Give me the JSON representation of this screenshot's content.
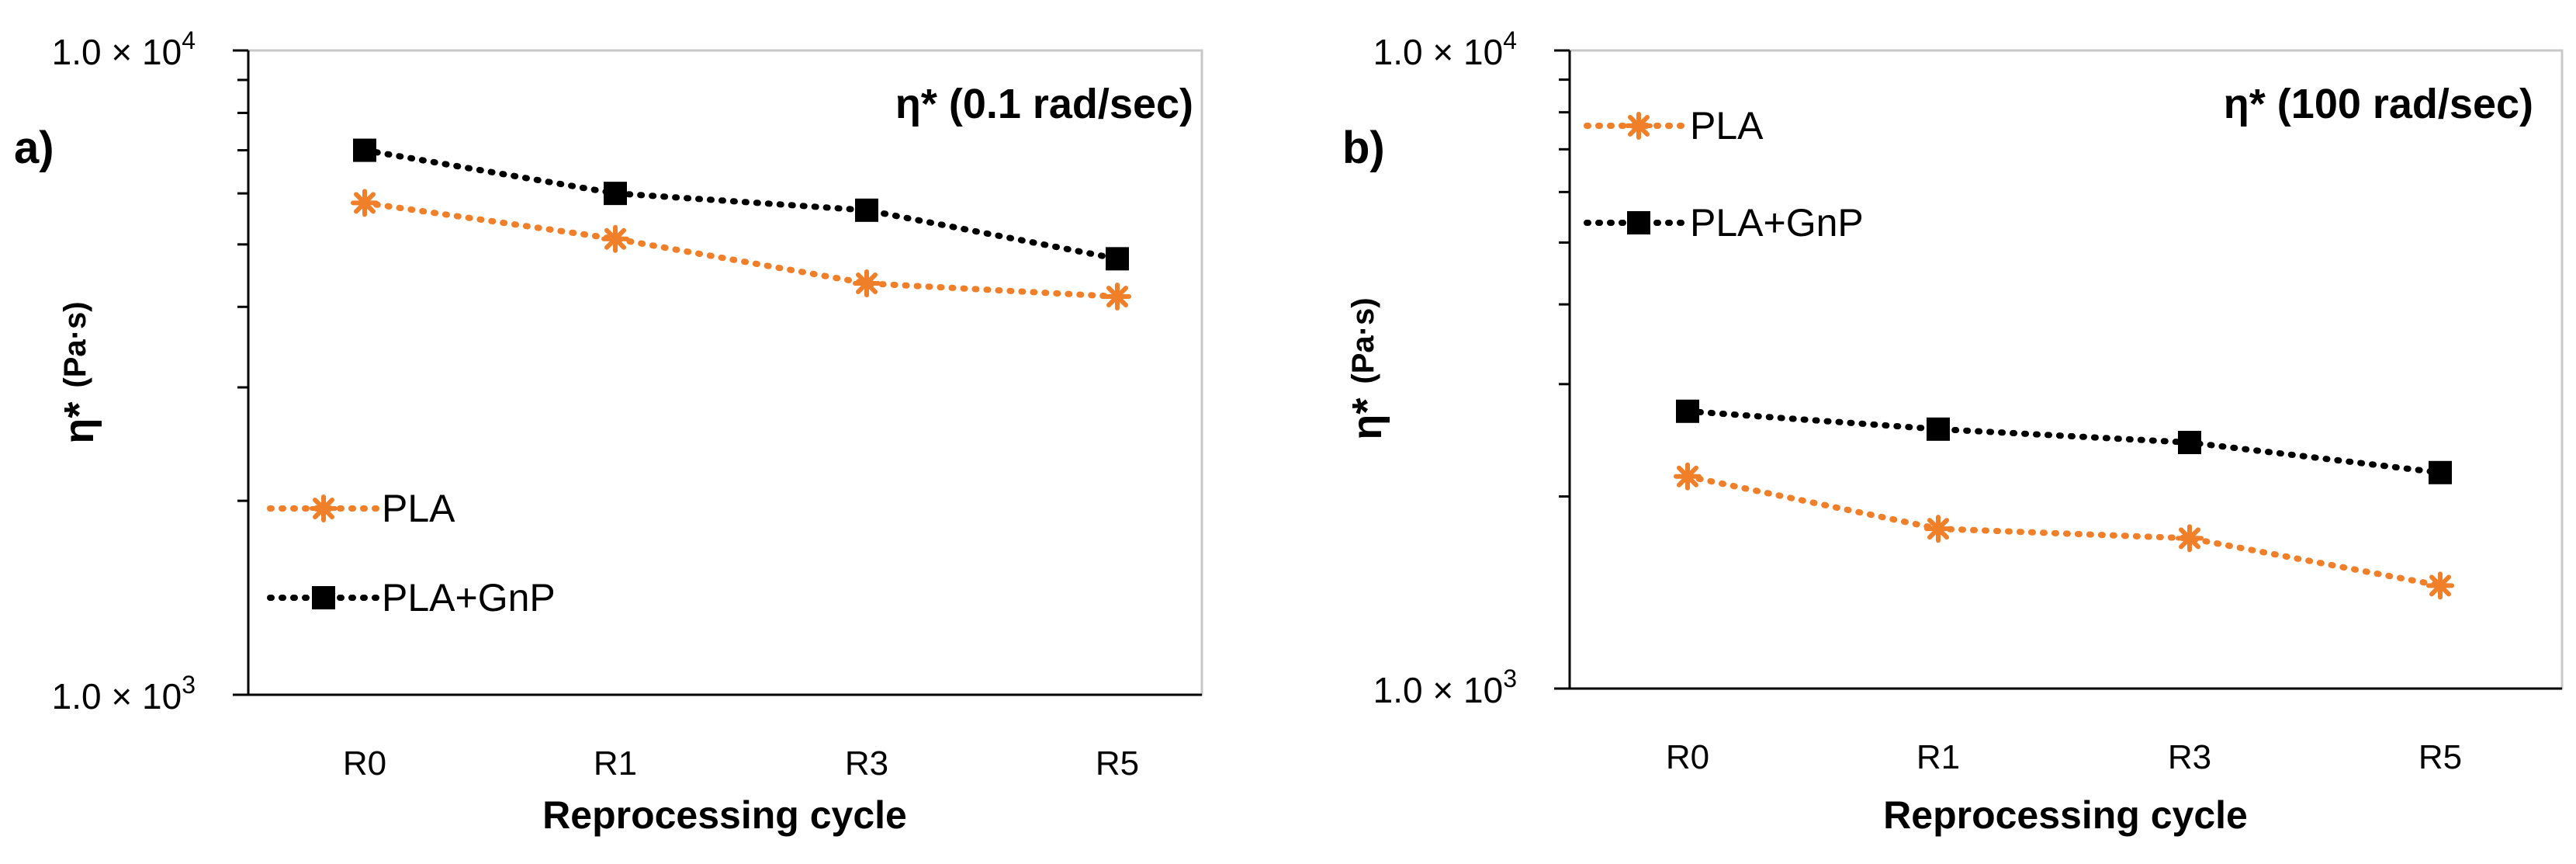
{
  "chart_data": [
    {
      "type": "line",
      "panel_label": "a)",
      "title": "η* (0.1 rad/sec)",
      "xlabel": "Reprocessing cycle",
      "ylabel": "η* (Pa·s)",
      "ylabel_main": "η*",
      "ylabel_unit": "(Pa·s)",
      "yscale": "log",
      "ylim": [
        1000,
        10000
      ],
      "ytick_labels": [
        {
          "mant": "1.0 × 10",
          "exp": "3",
          "value": 1000
        },
        {
          "mant": "1.0 × 10",
          "exp": "4",
          "value": 10000
        }
      ],
      "categories": [
        "R0",
        "R1",
        "R3",
        "R5"
      ],
      "legend_position": "lower-left",
      "series": [
        {
          "name": "PLA",
          "color": "#F07F2A",
          "marker": "asterisk",
          "values": [
            5800,
            5100,
            4350,
            4150
          ]
        },
        {
          "name": "PLA+GnP",
          "color": "#000000",
          "marker": "square",
          "values": [
            7000,
            6000,
            5650,
            4750
          ]
        }
      ]
    },
    {
      "type": "line",
      "panel_label": "b)",
      "title": "η* (100 rad/sec)",
      "xlabel": "Reprocessing cycle",
      "ylabel": "η* (Pa·s)",
      "ylabel_main": "η*",
      "ylabel_unit": "(Pa·s)",
      "yscale": "log",
      "ylim": [
        1000,
        10000
      ],
      "ytick_labels": [
        {
          "mant": "1.0 × 10",
          "exp": "3",
          "value": 1000
        },
        {
          "mant": "1.0 × 10",
          "exp": "4",
          "value": 10000
        }
      ],
      "categories": [
        "R0",
        "R1",
        "R3",
        "R5"
      ],
      "legend_position": "upper-left",
      "series": [
        {
          "name": "PLA",
          "color": "#F07F2A",
          "marker": "asterisk",
          "values": [
            2150,
            1780,
            1720,
            1450
          ]
        },
        {
          "name": "PLA+GnP",
          "color": "#000000",
          "marker": "square",
          "values": [
            2720,
            2550,
            2430,
            2180
          ]
        }
      ]
    }
  ]
}
